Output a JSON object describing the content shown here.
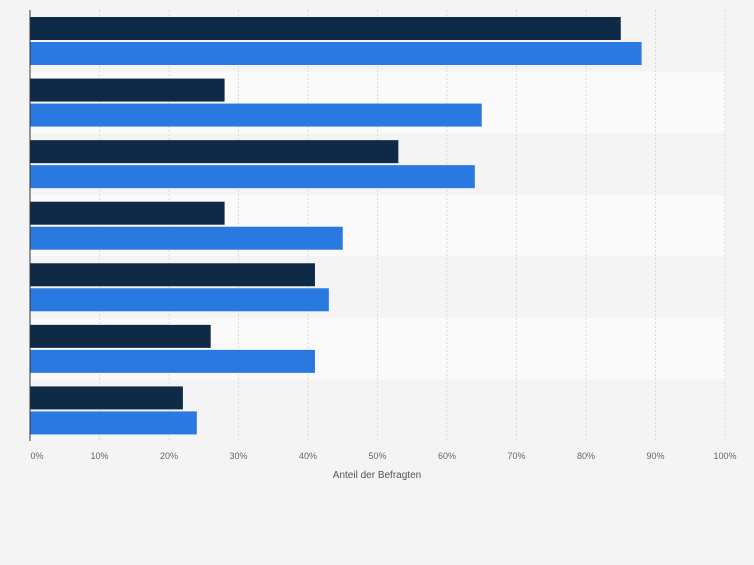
{
  "chart_data": {
    "type": "bar",
    "orientation": "horizontal",
    "categories": [
      "",
      "",
      "",
      "",
      "",
      "",
      ""
    ],
    "series": [
      {
        "color": "#0f2a47",
        "values": [
          85,
          28,
          53,
          28,
          41,
          26,
          22
        ]
      },
      {
        "color": "#2979e0",
        "values": [
          88,
          65,
          64,
          45,
          43,
          41,
          24
        ]
      }
    ],
    "xlim": [
      0,
      100
    ],
    "x_ticks": [
      "0%",
      "10%",
      "20%",
      "30%",
      "40%",
      "50%",
      "60%",
      "70%",
      "80%",
      "90%",
      "100%"
    ],
    "xlabel": "Anteil der Befragten",
    "ylabel": "",
    "grid": true,
    "legend": "none",
    "colors": {
      "background": "#f4f4f4",
      "band_even": "#f4f4f4",
      "band_odd": "#fafafa",
      "grid": "#dcdcdc",
      "axis": "#333333",
      "tick_text": "#666666"
    }
  }
}
